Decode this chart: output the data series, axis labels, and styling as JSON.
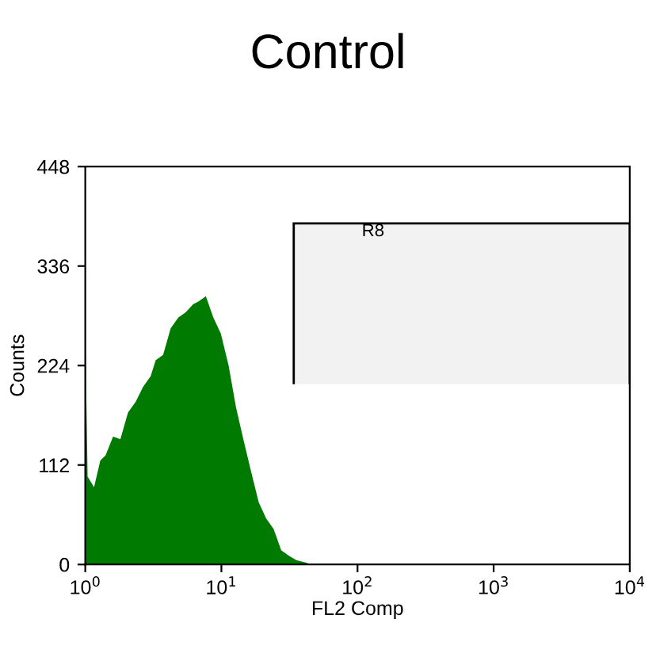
{
  "chart_data": {
    "type": "area",
    "title": "Control",
    "xlabel": "FL2 Comp",
    "ylabel": "Counts",
    "color": "#007a00",
    "log": "x",
    "x": [
      1.0,
      1.04,
      1.16,
      1.29,
      1.41,
      1.6,
      1.81,
      2.06,
      2.34,
      2.66,
      3.02,
      3.29,
      3.73,
      4.24,
      4.82,
      5.47,
      6.21,
      6.77,
      7.69,
      8.73,
      9.9,
      11.3,
      12.8,
      14.5,
      16.5,
      18.8,
      21.3,
      24.2,
      27.5,
      31.2,
      35.5,
      42.1,
      45.7
    ],
    "values": [
      263,
      99,
      87,
      117,
      123,
      144,
      141,
      171,
      183,
      200,
      212,
      230,
      236,
      266,
      278,
      284,
      293,
      296,
      302,
      278,
      260,
      224,
      177,
      141,
      105,
      70,
      52,
      40,
      16,
      10,
      5,
      2,
      0
    ],
    "xlim": [
      1,
      10000
    ],
    "ylim": [
      0,
      448
    ],
    "xticks": [
      {
        "value": 1,
        "label": "10$^{0}$"
      },
      {
        "value": 10,
        "label": "10$^{1}$"
      },
      {
        "value": 100,
        "label": "10$^{2}$"
      },
      {
        "value": 1000,
        "label": "10$^{3}$"
      },
      {
        "value": 10000,
        "label": "10$^{4}$"
      }
    ],
    "yticks": [
      0,
      112,
      224,
      336,
      448
    ],
    "bands": [
      {
        "axis": "x",
        "from": 34,
        "to": 10000,
        "label": "R8",
        "color": "#000000"
      }
    ]
  }
}
